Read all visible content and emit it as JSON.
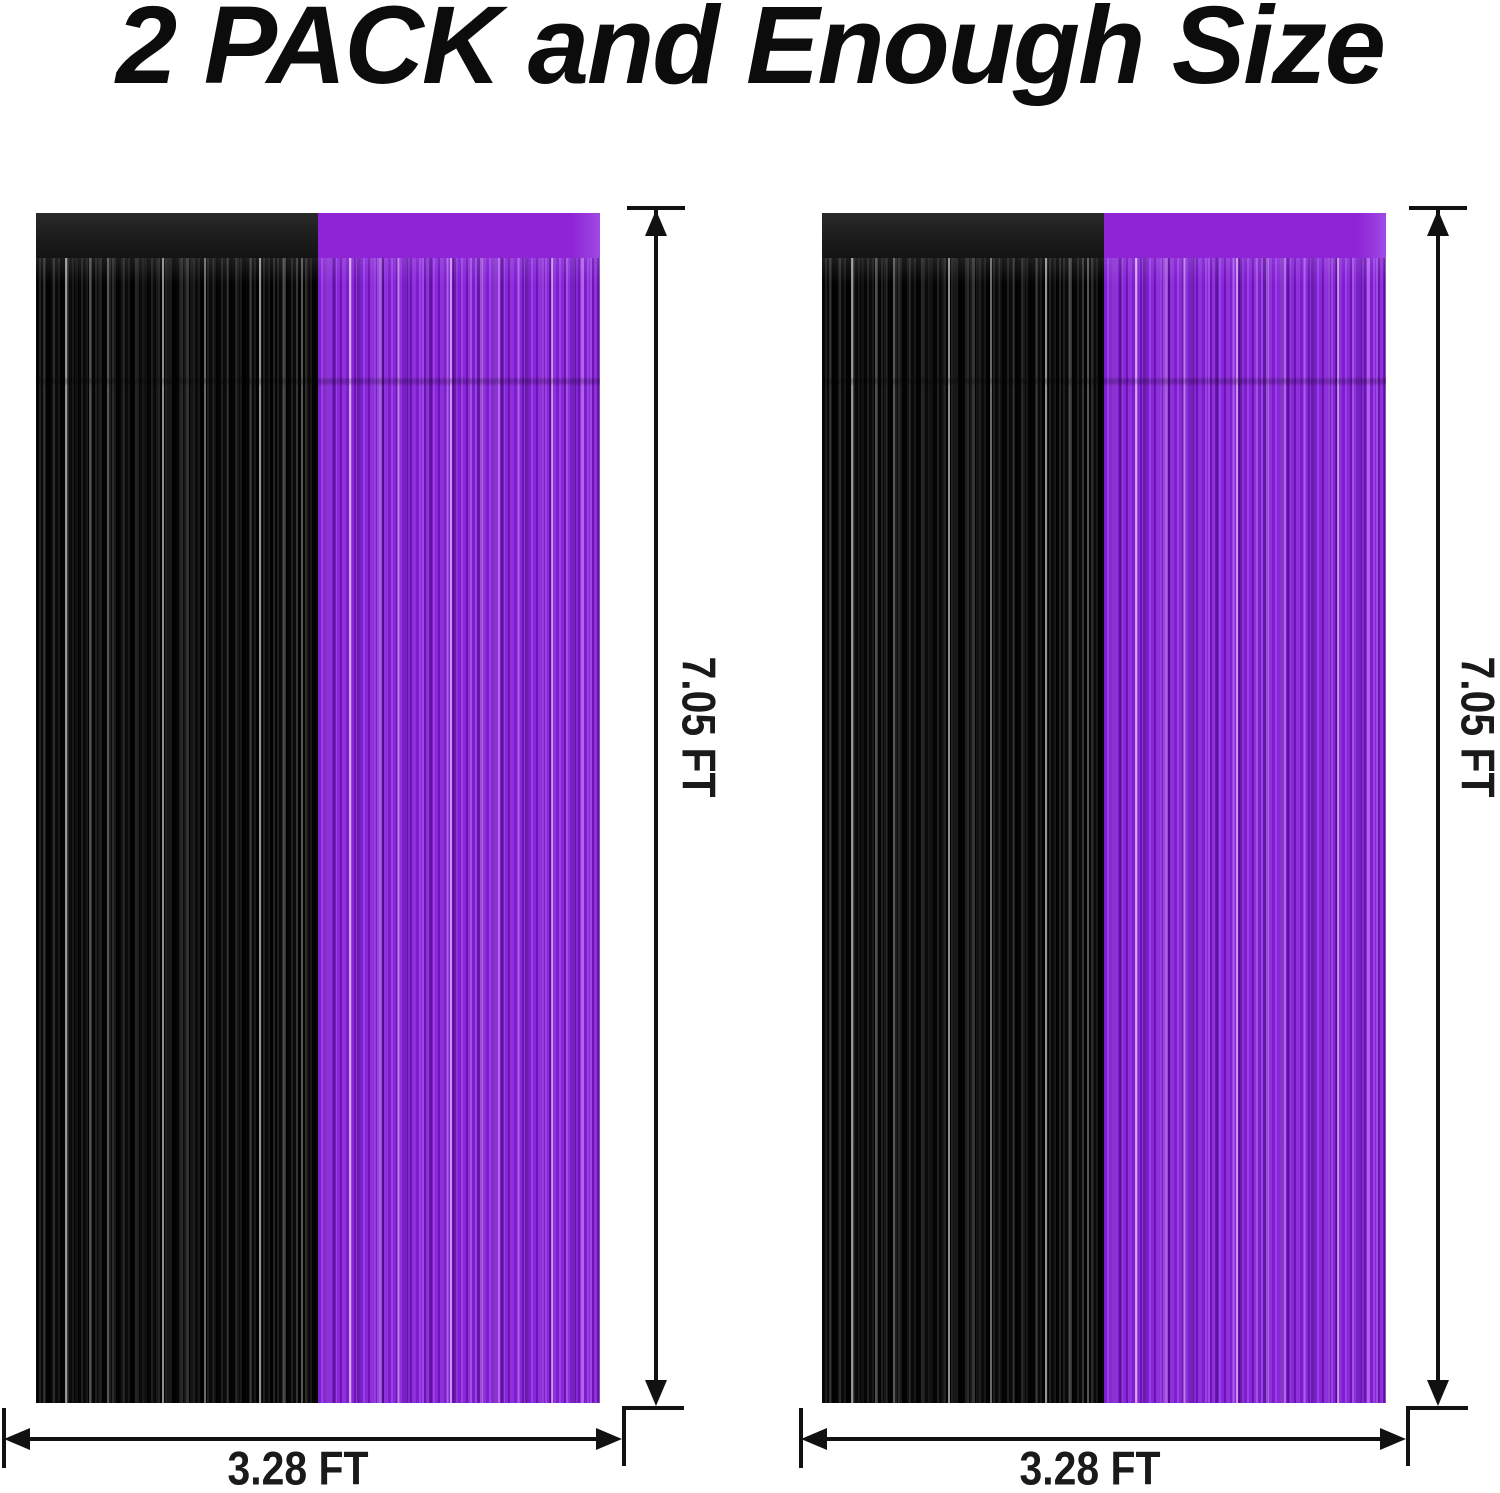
{
  "title": "2 PACK and Enough Size",
  "colors": {
    "purple": "#8E24D6",
    "black": "#141414",
    "annotation": "#111111"
  },
  "curtains": [
    {
      "id": "curtain-1",
      "left_half_color": "black",
      "right_half_color": "purple",
      "height_label": "7.05 FT",
      "width_label": "3.28 FT"
    },
    {
      "id": "curtain-2",
      "left_half_color": "black",
      "right_half_color": "purple",
      "height_label": "7.05 FT",
      "width_label": "3.28 FT"
    }
  ]
}
